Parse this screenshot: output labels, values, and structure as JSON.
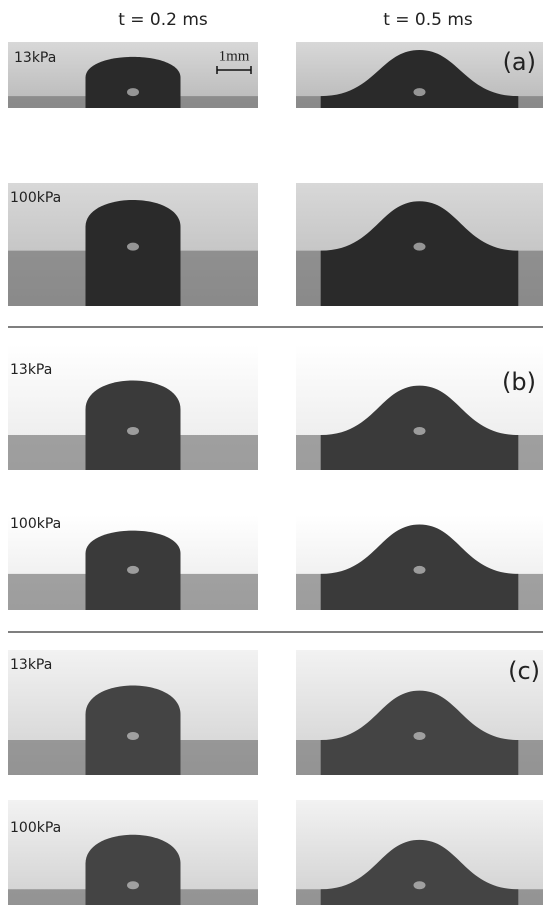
{
  "column_headers": [
    "t = 0.2 ms",
    "t = 0.5 ms"
  ],
  "scale_bar": "1mm",
  "panels": [
    {
      "label": "(a)",
      "rows": [
        {
          "pressure": "13kPa"
        },
        {
          "pressure": "100kPa"
        }
      ]
    },
    {
      "label": "(b)",
      "rows": [
        {
          "pressure": "13kPa"
        },
        {
          "pressure": "100kPa"
        }
      ]
    },
    {
      "label": "(c)",
      "rows": [
        {
          "pressure": "13kPa"
        },
        {
          "pressure": "100kPa"
        }
      ]
    }
  ]
}
